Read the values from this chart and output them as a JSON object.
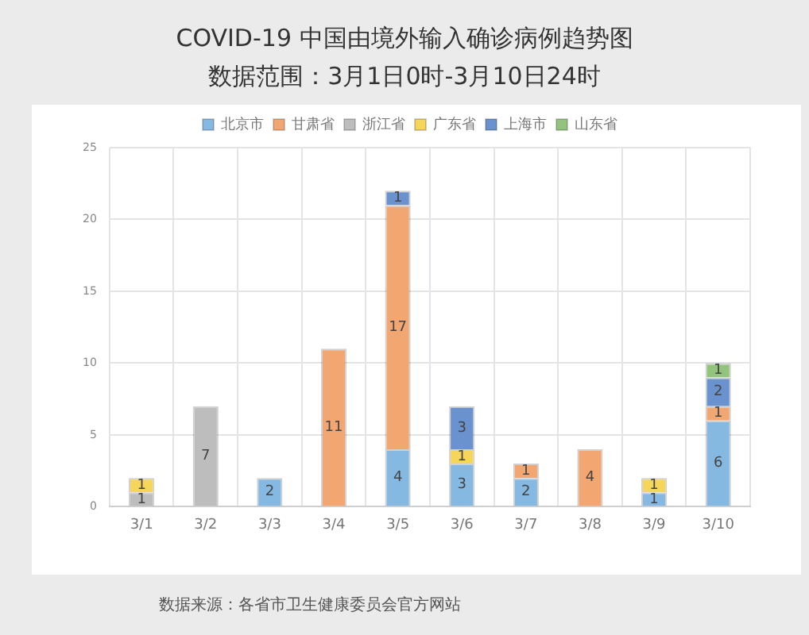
{
  "chart_data": {
    "type": "bar",
    "title": "COVID-19 中国由境外输入确诊病例趋势图",
    "subtitle": "数据范围：3月1日0时-3月10日24时",
    "categories": [
      "3/1",
      "3/2",
      "3/3",
      "3/4",
      "3/5",
      "3/6",
      "3/7",
      "3/8",
      "3/9",
      "3/10"
    ],
    "series": [
      {
        "name": "北京市",
        "color": "#86b9e2",
        "values": [
          null,
          null,
          2,
          null,
          4,
          3,
          2,
          null,
          1,
          6
        ]
      },
      {
        "name": "甘肃省",
        "color": "#f2a772",
        "values": [
          null,
          null,
          null,
          11,
          17,
          null,
          1,
          4,
          null,
          1
        ]
      },
      {
        "name": "浙江省",
        "color": "#bdbdbd",
        "values": [
          1,
          7,
          null,
          null,
          null,
          null,
          null,
          null,
          null,
          null
        ]
      },
      {
        "name": "广东省",
        "color": "#f5d55a",
        "values": [
          1,
          null,
          null,
          null,
          null,
          1,
          null,
          null,
          1,
          null
        ]
      },
      {
        "name": "上海市",
        "color": "#6a92cf",
        "values": [
          null,
          null,
          null,
          null,
          1,
          3,
          null,
          null,
          null,
          2
        ]
      },
      {
        "name": "山东省",
        "color": "#93c47d",
        "values": [
          null,
          null,
          null,
          null,
          null,
          null,
          null,
          null,
          null,
          1
        ]
      }
    ],
    "stacked": true,
    "ylim": [
      0,
      25
    ],
    "yticks": [
      0,
      5,
      10,
      15,
      20,
      25
    ],
    "grid": true,
    "legend": "top",
    "data_labels": true,
    "annotations": [
      "数据来源：各省市卫生健康委员会官方网站"
    ]
  }
}
